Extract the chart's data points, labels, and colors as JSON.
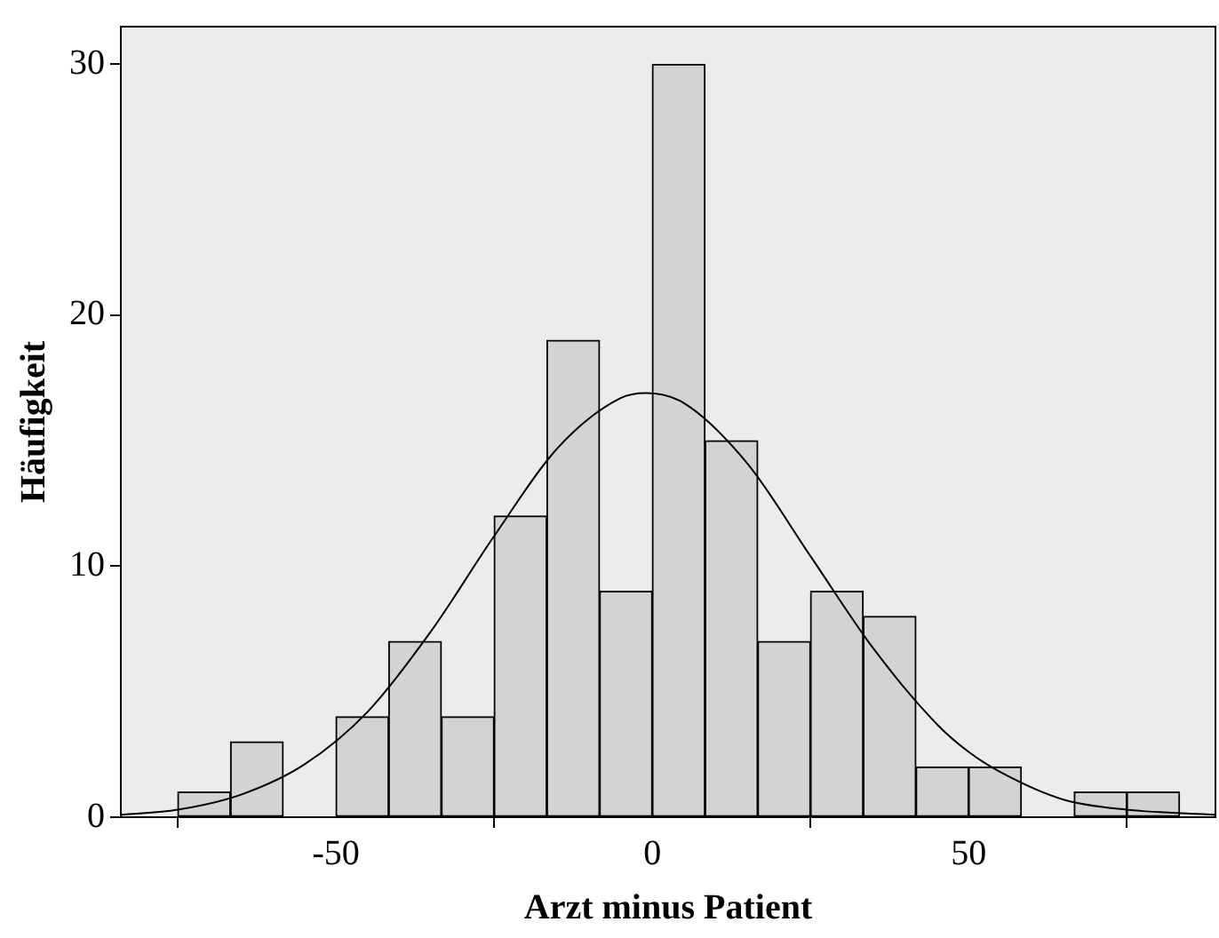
{
  "chart_data": {
    "type": "histogram",
    "xlabel": "Arzt minus Patient",
    "ylabel": "Häufigkeit",
    "xlim": [
      -84,
      89
    ],
    "ylim": [
      0,
      31.5
    ],
    "xticks": [
      -50,
      0,
      50
    ],
    "yticks": [
      0,
      10,
      20,
      30
    ],
    "grid": false,
    "legend": false,
    "series": [
      {
        "color": "#d3d3d3",
        "bins": [
          -75,
          -66.67,
          -58.33,
          -50,
          -41.67,
          -33.33,
          -25,
          -16.67,
          -8.33,
          0,
          8.33,
          16.67,
          25,
          33.33,
          41.67,
          50,
          58.33,
          66.67,
          75,
          83.33
        ],
        "values": [
          1,
          3,
          0,
          4,
          7,
          4,
          12,
          19,
          9,
          30,
          15,
          7,
          9,
          8,
          2,
          2,
          0,
          1,
          1
        ]
      },
      {
        "type": "line",
        "color": "#000000",
        "marker": "none",
        "x": [
          -84,
          -75,
          -65,
          -55,
          -45,
          -35,
          -25,
          -15,
          -5,
          -1,
          5,
          15,
          25,
          35,
          45,
          50,
          55,
          65,
          75,
          89
        ],
        "values": [
          0.1,
          0.3,
          0.9,
          2.1,
          4.2,
          7.4,
          11.2,
          14.7,
          16.7,
          16.9,
          16.5,
          14.1,
          10.4,
          6.7,
          3.7,
          2.6,
          1.8,
          0.7,
          0.3,
          0.1
        ]
      }
    ]
  }
}
